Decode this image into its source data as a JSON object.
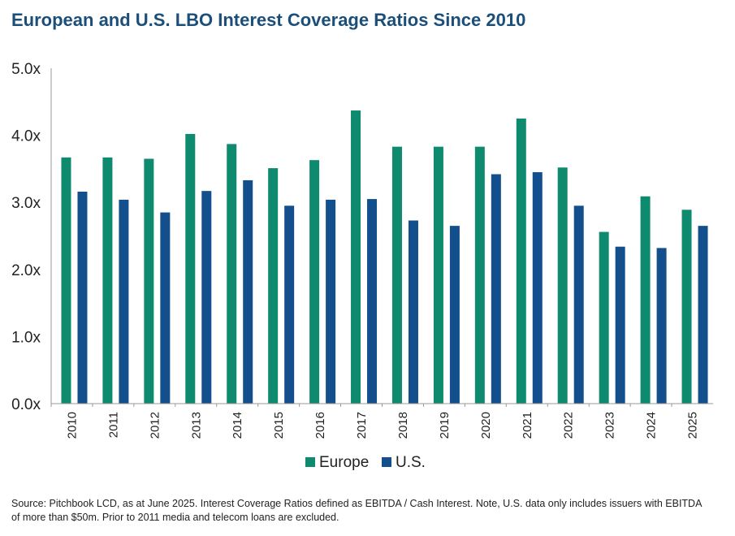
{
  "title": "European and U.S. LBO Interest Coverage Ratios Since 2010",
  "source": "Source: Pitchbook LCD, as at June 2025. Interest Coverage Ratios defined as EBITDA / Cash Interest. Note, U.S. data only includes issuers with EBITDA of more than $50m. Prior to 2011 media and telecom loans are excluded.",
  "colors": {
    "europe": "#0e8a6e",
    "us": "#134f8c",
    "axis": "#9a9a9a",
    "text": "#222222"
  },
  "chart_data": {
    "type": "bar",
    "categories": [
      "2010",
      "2011",
      "2012",
      "2013",
      "2014",
      "2015",
      "2016",
      "2017",
      "2018",
      "2019",
      "2020",
      "2021",
      "2022",
      "2023",
      "2024",
      "2025"
    ],
    "series": [
      {
        "name": "Europe",
        "values": [
          3.67,
          3.67,
          3.65,
          4.02,
          3.87,
          3.51,
          3.63,
          4.37,
          3.83,
          3.83,
          3.83,
          4.25,
          3.52,
          2.56,
          3.09,
          2.89
        ]
      },
      {
        "name": "U.S.",
        "values": [
          3.16,
          3.04,
          2.85,
          3.17,
          3.33,
          2.95,
          3.04,
          3.05,
          2.73,
          2.65,
          3.42,
          3.45,
          2.95,
          2.34,
          2.32,
          2.65
        ]
      }
    ],
    "yticks": [
      "0.0x",
      "1.0x",
      "2.0x",
      "3.0x",
      "4.0x",
      "5.0x"
    ],
    "ylim": [
      0,
      5
    ],
    "xlabel": "",
    "ylabel": "",
    "legend": "bottom-center",
    "grid": false
  }
}
